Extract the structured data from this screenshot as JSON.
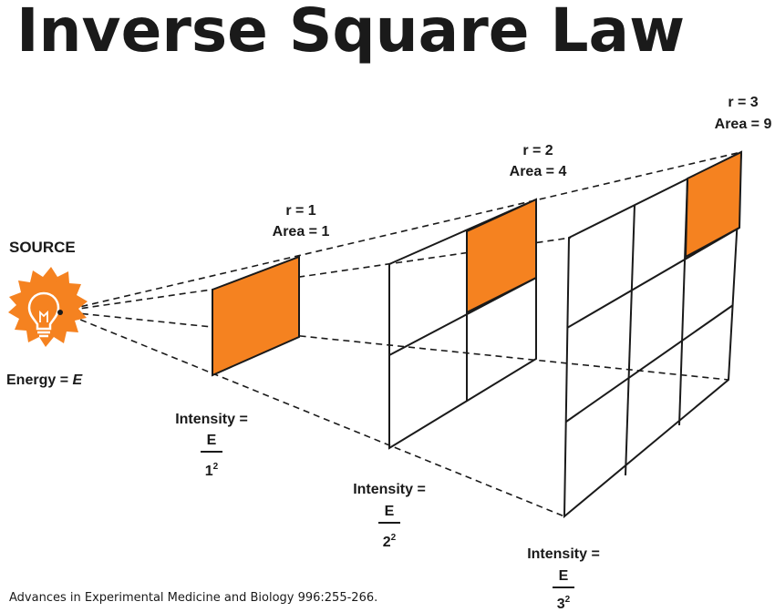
{
  "title": "Inverse Square Law",
  "source": {
    "label": "SOURCE",
    "energy_prefix": "Energy = ",
    "energy_symbol": "E"
  },
  "panels": [
    {
      "r_label": "r = 1",
      "area_label": "Area = 1",
      "intensity_label": "Intensity =",
      "numerator": "E",
      "denominator": "1",
      "exponent": "2"
    },
    {
      "r_label": "r = 2",
      "area_label": "Area = 4",
      "intensity_label": "Intensity =",
      "numerator": "E",
      "denominator": "2",
      "exponent": "2"
    },
    {
      "r_label": "r = 3",
      "area_label": "Area = 9",
      "intensity_label": "Intensity =",
      "numerator": "E",
      "denominator": "3",
      "exponent": "2"
    }
  ],
  "citation": "Advances in Experimental Medicine and Biology 996:255-266.",
  "colors": {
    "accent": "#f58220",
    "ink": "#1a1a1a"
  },
  "icons": {
    "source": "light-bulb-icon"
  }
}
